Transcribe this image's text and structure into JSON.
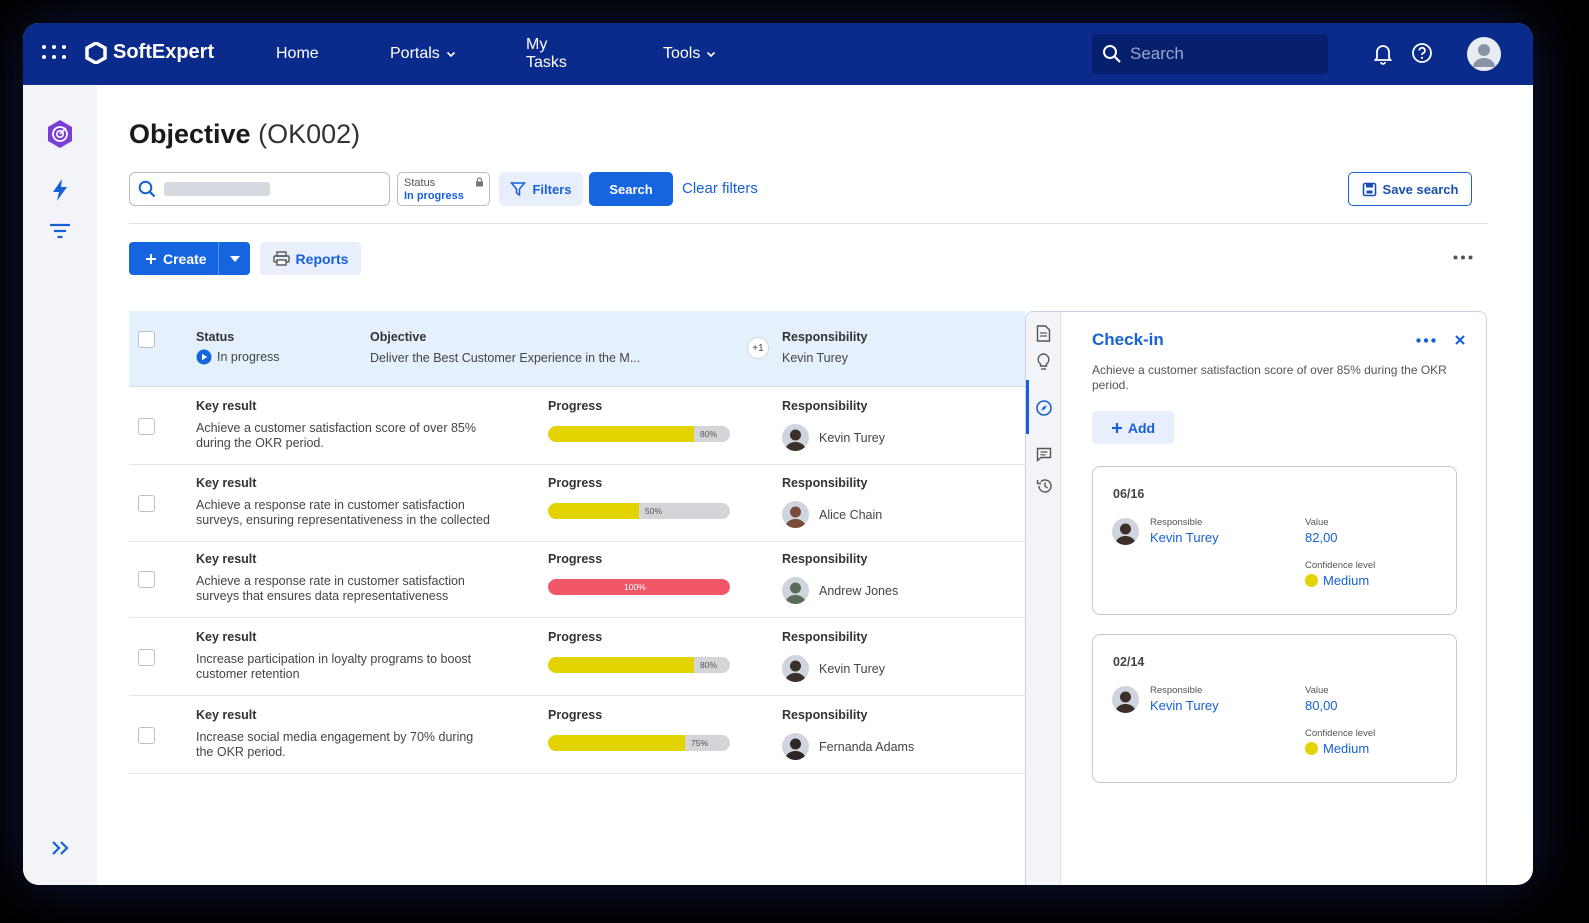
{
  "app": {
    "brand": "SoftExpert",
    "nav": {
      "home": "Home",
      "portals": "Portals",
      "my_tasks": "My Tasks",
      "tools": "Tools"
    },
    "search_placeholder": "Search",
    "accent_color": "#0a2a8c",
    "primary_color": "#1565e0"
  },
  "page": {
    "title": "Objective",
    "code": "(OK002)"
  },
  "toolbar": {
    "status_label": "Status",
    "status_value": "In progress",
    "filters_label": "Filters",
    "search_label": "Search",
    "clear_filters_label": "Clear filters",
    "save_search_label": "Save search",
    "create_label": "Create",
    "reports_label": "Reports"
  },
  "objective_row": {
    "status_header": "Status",
    "status_value": "In progress",
    "objective_header": "Objective",
    "objective_value": "Deliver the Best Customer Experience in the M...",
    "extra_count": "+1",
    "responsibility_header": "Responsibility",
    "responsibility_value": "Kevin Turey"
  },
  "key_results": [
    {
      "type_label": "Key result",
      "line1": "Achieve a customer satisfaction score of over 85%",
      "line2": "during the OKR period.",
      "progress_header": "Progress",
      "progress": 80,
      "progress_label": "80%",
      "bar_color": "#e3d400",
      "responsibility_header": "Responsibility",
      "person": "Kevin Turey",
      "avatar_color": "#3b2f2a"
    },
    {
      "type_label": "Key result",
      "line1": "Achieve a response rate in customer satisfaction",
      "line2": "surveys, ensuring representativeness in the collected",
      "progress_header": "Progress",
      "progress": 50,
      "progress_label": "50%",
      "bar_color": "#e3d400",
      "responsibility_header": "Responsibility",
      "person": "Alice Chain",
      "avatar_color": "#7a4b3a"
    },
    {
      "type_label": "Key result",
      "line1": "Achieve a response rate in customer satisfaction",
      "line2": "surveys that ensures data representativeness",
      "progress_header": "Progress",
      "progress": 100,
      "progress_label": "100%",
      "bar_color": "#f25768",
      "responsibility_header": "Responsibility",
      "person": "Andrew Jones",
      "avatar_color": "#5a6b5a"
    },
    {
      "type_label": "Key result",
      "line1": "Increase participation in loyalty programs to boost",
      "line2": "customer retention",
      "progress_header": "Progress",
      "progress": 80,
      "progress_label": "80%",
      "bar_color": "#e3d400",
      "responsibility_header": "Responsibility",
      "person": "Kevin Turey",
      "avatar_color": "#3b2f2a"
    },
    {
      "type_label": "Key result",
      "line1": "Increase social media engagement by 70% during",
      "line2": "the OKR period.",
      "progress_header": "Progress",
      "progress": 75,
      "progress_label": "75%",
      "bar_color": "#e3d400",
      "responsibility_header": "Responsibility",
      "person": "Fernanda Adams",
      "avatar_color": "#2c2624"
    }
  ],
  "checkin": {
    "title": "Check-in",
    "description": "Achieve a customer satisfaction score of over 85% during the OKR period.",
    "add_label": "Add",
    "entries": [
      {
        "date": "06/16",
        "responsible_label": "Responsible",
        "responsible": "Kevin Turey",
        "value_label": "Value",
        "value": "82,00",
        "confidence_label": "Confidence level",
        "confidence": "Medium"
      },
      {
        "date": "02/14",
        "responsible_label": "Responsible",
        "responsible": "Kevin Turey",
        "value_label": "Value",
        "value": "80,00",
        "confidence_label": "Confidence level",
        "confidence": "Medium"
      }
    ]
  }
}
